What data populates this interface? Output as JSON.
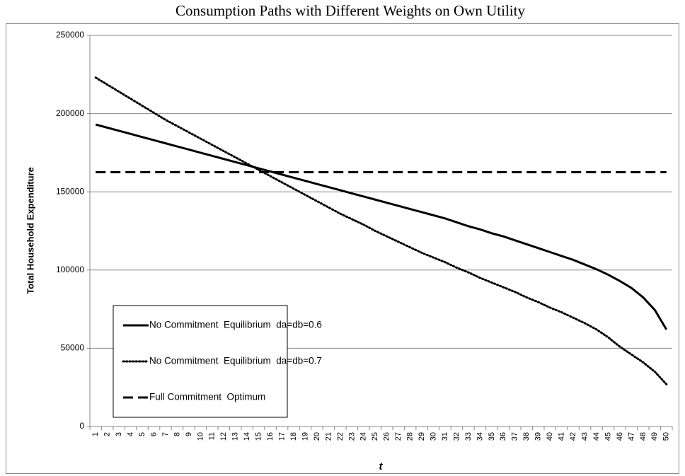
{
  "chart_data": {
    "type": "line",
    "title": "Consumption Paths with Different Weights on Own Utility",
    "x_label": "t",
    "y_label": "Total Household Expenditure",
    "categories": [
      "1",
      "2",
      "3",
      "4",
      "5",
      "6",
      "7",
      "8",
      "9",
      "10",
      "11",
      "12",
      "13",
      "14",
      "15",
      "16",
      "17",
      "18",
      "19",
      "20",
      "21",
      "22",
      "23",
      "24",
      "25",
      "26",
      "27",
      "28",
      "29",
      "30",
      "31",
      "32",
      "33",
      "34",
      "35",
      "36",
      "37",
      "38",
      "39",
      "40",
      "41",
      "42",
      "43",
      "44",
      "45",
      "46",
      "47",
      "48",
      "49",
      "50"
    ],
    "series": [
      {
        "name": "No Commitment  Equilibrium  da=db=0.6",
        "color": "#000000",
        "dash": "solid",
        "values": [
          193000,
          191000,
          189000,
          187000,
          185000,
          183000,
          181000,
          179000,
          177000,
          175000,
          173000,
          171000,
          169000,
          167000,
          165000,
          163000,
          161000,
          159000,
          157000,
          155000,
          153000,
          151000,
          149000,
          147000,
          145000,
          143000,
          141000,
          139000,
          137000,
          135000,
          133000,
          130500,
          128000,
          126000,
          123500,
          121500,
          119000,
          116500,
          114000,
          111500,
          109000,
          106500,
          103500,
          100500,
          97000,
          93000,
          88500,
          82500,
          74500,
          62000
        ]
      },
      {
        "name": "No Commitment  Equilibrium  da=db=0.7",
        "color": "#000000",
        "dash": "dotted",
        "values": [
          223000,
          218500,
          214000,
          209500,
          205000,
          200500,
          196000,
          192000,
          188000,
          184000,
          180000,
          176000,
          172000,
          168000,
          164000,
          160000,
          156000,
          152000,
          148000,
          144000,
          140000,
          136000,
          132500,
          129000,
          125000,
          121500,
          118000,
          114500,
          111000,
          108000,
          105000,
          101500,
          98500,
          95000,
          92000,
          89000,
          86000,
          82500,
          79500,
          76000,
          73000,
          69500,
          66000,
          62000,
          57000,
          51000,
          46000,
          41000,
          35000,
          27000
        ]
      },
      {
        "name": "Full Commitment  Optimum",
        "color": "#000000",
        "dash": "dashed",
        "values": [
          162500,
          162500,
          162500,
          162500,
          162500,
          162500,
          162500,
          162500,
          162500,
          162500,
          162500,
          162500,
          162500,
          162500,
          162500,
          162500,
          162500,
          162500,
          162500,
          162500,
          162500,
          162500,
          162500,
          162500,
          162500,
          162500,
          162500,
          162500,
          162500,
          162500,
          162500,
          162500,
          162500,
          162500,
          162500,
          162500,
          162500,
          162500,
          162500,
          162500,
          162500,
          162500,
          162500,
          162500,
          162500,
          162500,
          162500,
          162500,
          162500,
          162500
        ]
      }
    ],
    "ylim": [
      0,
      250000
    ],
    "yticks": [
      0,
      50000,
      100000,
      150000,
      200000,
      250000
    ],
    "grid": true,
    "legend": "lower left"
  }
}
